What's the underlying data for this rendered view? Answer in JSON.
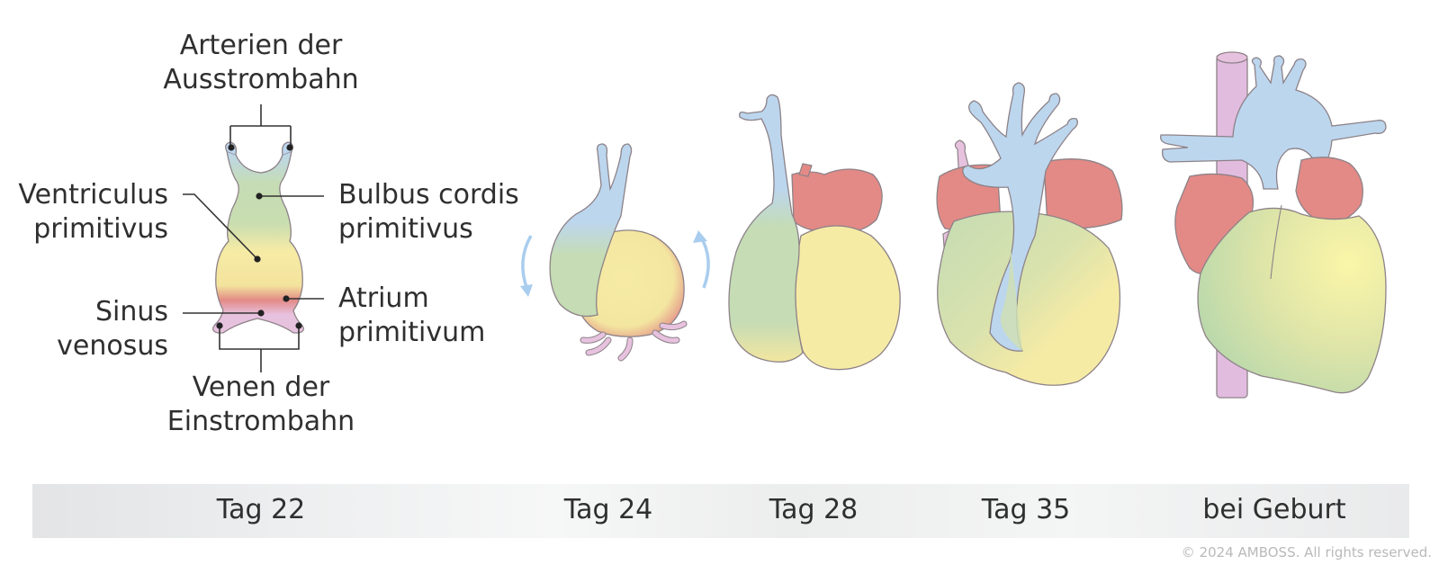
{
  "labels": {
    "arterien_line1": "Arterien der",
    "arterien_line2": "Ausstrombahn",
    "ventriculus_line1": "Ventriculus",
    "ventriculus_line2": "primitivus",
    "bulbus_line1": "Bulbus cordis",
    "bulbus_line2": "primitivus",
    "sinus_line1": "Sinus",
    "sinus_line2": "venosus",
    "atrium_line1": "Atrium",
    "atrium_line2": "primitivum",
    "venen_line1": "Venen der",
    "venen_line2": "Einstrombahn"
  },
  "stages": [
    "Tag 22",
    "Tag 24",
    "Tag 28",
    "Tag 35",
    "bei Geburt"
  ],
  "copyright": "© 2024 AMBOSS. All rights reserved.",
  "colors": {
    "outflow_blue": "#bcd6ee",
    "ventricle_green": "#c5dcb4",
    "bulbus_yellow": "#f6eba5",
    "atrium_red": "#e38a86",
    "venous_pink": "#e7c2df",
    "arrow_blue": "#a9cdee",
    "outline": "#8d8288"
  }
}
